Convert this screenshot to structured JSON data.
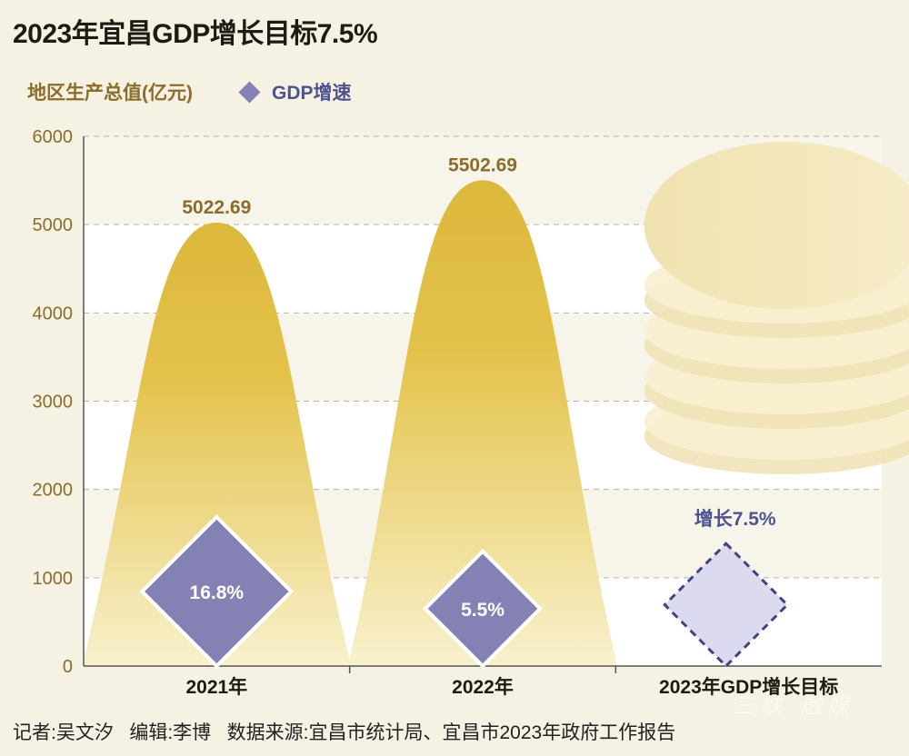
{
  "title": "2023年宜昌GDP增长目标7.5%",
  "legend": {
    "left_label": "地区生产总值(亿元)",
    "series_label": "GDP增速"
  },
  "colors": {
    "background": "#f5f1e3",
    "bar_top": "#dcb83c",
    "bar_bottom": "#f8f1cc",
    "diamond": "#8482b5",
    "diamond_target_fill": "#dcdaee",
    "diamond_target_stroke": "#3e4580",
    "value_label": "#8a6d2b",
    "axis_label": "#8a6d2b",
    "growth_text": "#4e5390"
  },
  "chart_data": {
    "type": "bar",
    "categories": [
      "2021年",
      "2022年",
      "2023年GDP增长目标"
    ],
    "series": [
      {
        "name": "地区生产总值(亿元)",
        "values": [
          5022.69,
          5502.69,
          null
        ]
      },
      {
        "name": "GDP增速",
        "values": [
          16.8,
          5.5,
          7.5
        ]
      }
    ],
    "value_labels": [
      "5022.69",
      "5502.69"
    ],
    "growth_labels": [
      "16.8%",
      "5.5%",
      "增长7.5%"
    ],
    "yticks": [
      "0",
      "1000",
      "2000",
      "3000",
      "4000",
      "5000",
      "6000"
    ],
    "ylim": [
      0,
      6000
    ],
    "grid": true
  },
  "footer": "记者:吴文汐   编辑:李博   数据来源:宜昌市统计局、宜昌市2023年政府工作报告",
  "watermark": "三峡 融媒"
}
